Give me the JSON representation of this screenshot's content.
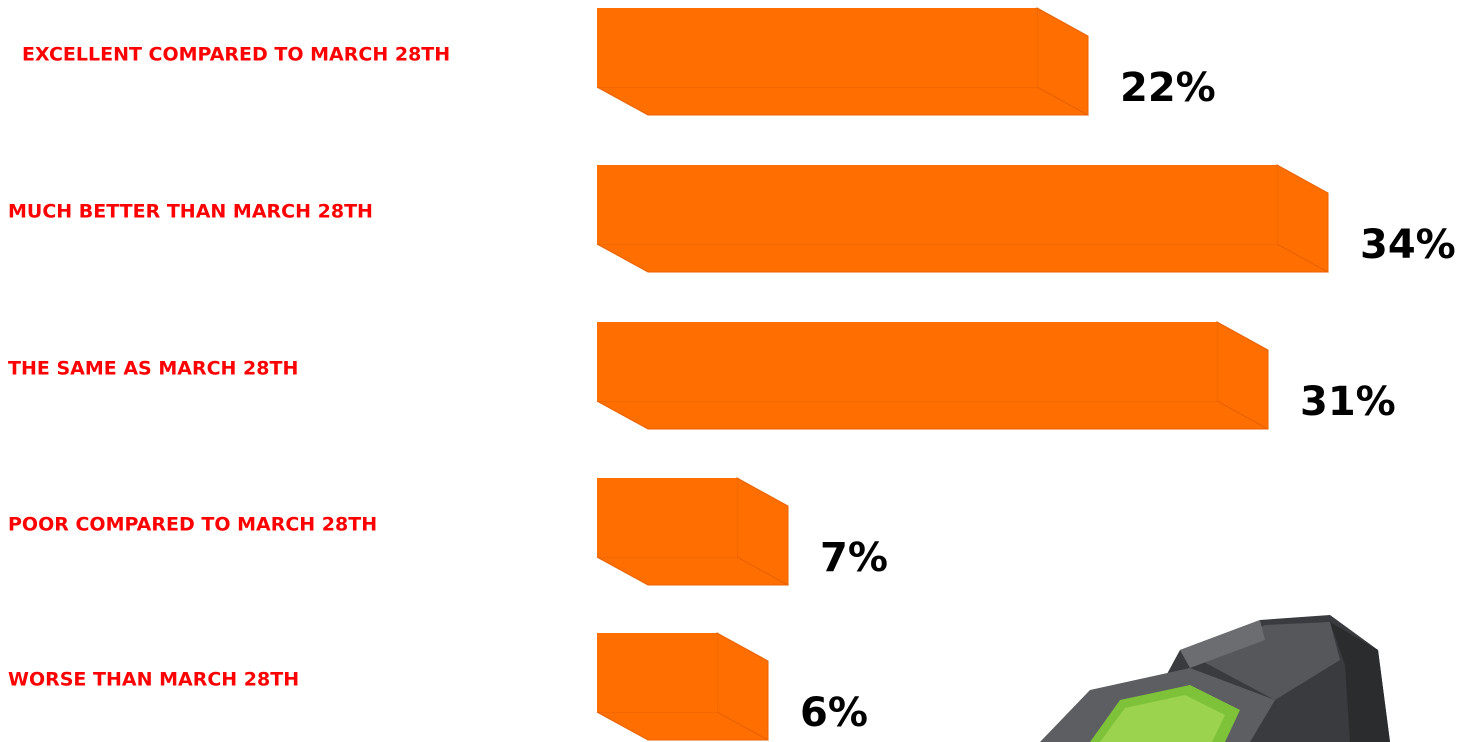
{
  "chart_data": {
    "type": "bar",
    "orientation": "horizontal",
    "categories": [
      "EXCELLENT COMPARED TO MARCH 28TH",
      "MUCH BETTER THAN MARCH 28TH",
      "THE SAME AS MARCH 28TH",
      "POOR COMPARED TO MARCH 28TH",
      "WORSE THAN MARCH 28TH"
    ],
    "values": [
      22,
      34,
      31,
      7,
      6
    ],
    "value_labels": [
      "22%",
      "34%",
      "31%",
      "7%",
      "6%"
    ],
    "color": "#ff6e00",
    "label_color": "#ff0000"
  }
}
